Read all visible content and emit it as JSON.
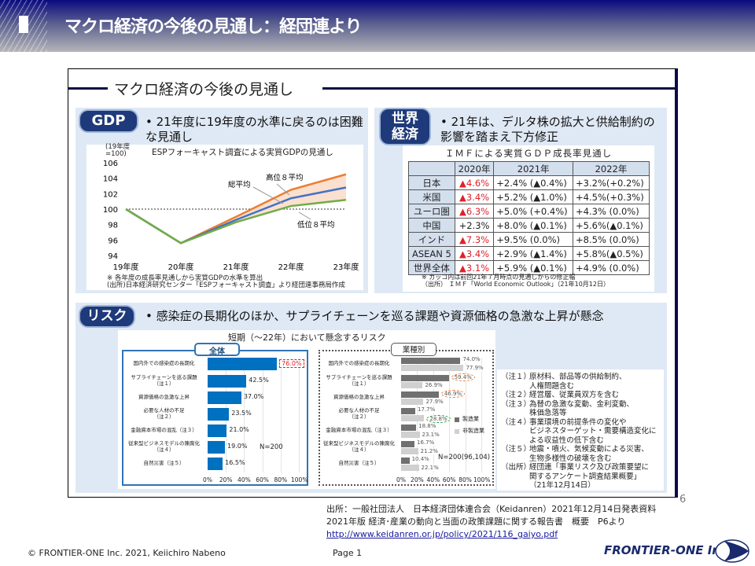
{
  "header": {
    "title": "マクロ経済の今後の見通し：経団連より"
  },
  "slide": {
    "section_title": "マクロ経済の今後の見通し",
    "page_number": "6"
  },
  "gdp": {
    "badge": "GDP",
    "bullet": "21年度に19年度の水準に戻るのは困難な見通し",
    "chart_data": {
      "type": "line",
      "title": "ESPフォーキャスト調査による実質GDPの見通し",
      "ylabel": "(19年度=100)",
      "categories": [
        "19年度",
        "20年度",
        "21年度",
        "22年度",
        "23年度"
      ],
      "ylim": [
        94,
        106
      ],
      "yticks": [
        94,
        96,
        98,
        100,
        102,
        104,
        106
      ],
      "series": [
        {
          "name": "高位８平均",
          "color": "#ed7d31",
          "values": [
            100,
            95.6,
            99.0,
            102.5,
            104.5
          ]
        },
        {
          "name": "総平均",
          "color": "#4472c4",
          "values": [
            100,
            95.6,
            98.6,
            101.4,
            102.8
          ]
        },
        {
          "name": "低位８平均",
          "color": "#70ad47",
          "values": [
            100,
            95.6,
            98.3,
            100.4,
            101.2
          ]
        }
      ],
      "reference_line": 100
    },
    "notes": [
      "※ 各年度の成長率見通しから実質GDPの水準を算出",
      "(出所)日本経済研究センター「ESPフォーキャスト調査」より経団連事務局作成"
    ]
  },
  "world": {
    "badge_line1": "世界",
    "badge_line2": "経済",
    "bullet": "21年は、デルタ株の拡大と供給制約の影響を踏まえ下方修正",
    "table": {
      "title": "ＩＭＦによる実質ＧＤＰ成長率見通し",
      "headers": [
        "",
        "2020年",
        "2021年",
        "2022年"
      ],
      "rows": [
        [
          "日本",
          "▲4.6%",
          "+2.4% (▲0.4%)",
          "+3.2%(+0.2%)"
        ],
        [
          "米国",
          "▲3.4%",
          "+5.2% (▲1.0%)",
          "+4.5%(+0.3%)"
        ],
        [
          "ユーロ圏",
          "▲6.3%",
          "+5.0% (+0.4%)",
          "+4.3% (0.0%)"
        ],
        [
          "中国",
          "+2.3%",
          "+8.0% (▲0.1%)",
          "+5.6%(▲0.1%)"
        ],
        [
          "インド",
          "▲7.3%",
          "+9.5% (0.0%)",
          "+8.5% (0.0%)"
        ],
        [
          "ASEAN 5",
          "▲3.4%",
          "+2.9% (▲1.4%)",
          "+5.8%(▲0.5%)"
        ],
        [
          "世界全体",
          "▲3.1%",
          "+5.9% (▲0.1%)",
          "+4.9% (0.0%)"
        ]
      ]
    },
    "notes": [
      "※ カッコ内は前回21年７月時点の見通しからの修正幅",
      "（出所） ＩＭＦ「World Economic Outlook」（21年10月12日）"
    ]
  },
  "risk": {
    "badge": "リスク",
    "bullet": "感染症の長期化のほか、サプライチェーンを巡る課題や資源価格の急激な上昇が懸念",
    "subtitle": "短期（～22年）において懸念するリスク",
    "categories": [
      "国内外での感染症の長期化",
      "サプライチェーンを巡る課題\n（注１）",
      "資源価格の急激な上昇",
      "必要な人材の不足\n（注２）",
      "金融資本市場の混乱（注３）",
      "従来型ビジネスモデルの陳腐化\n（注４）",
      "自然災害（注５）"
    ],
    "xticks": [
      "0%",
      "20%",
      "40%",
      "60%",
      "80%",
      "100%"
    ],
    "chart_data": [
      {
        "type": "bar",
        "title": "全体",
        "n_label": "N=200",
        "color": "#0070c0",
        "values": [
          76.0,
          42.5,
          37.0,
          23.5,
          21.0,
          19.0,
          16.5
        ],
        "highlight": [
          0
        ]
      },
      {
        "type": "bar",
        "title": "業種別",
        "n_label": "N=200(96,104)",
        "series": [
          {
            "name": "製造業",
            "color": "#707070",
            "values": [
              74.0,
              59.4,
              46.9,
              17.7,
              18.8,
              16.7,
              10.4
            ]
          },
          {
            "name": "非製造業",
            "color": "#d0d0d0",
            "values": [
              77.9,
              26.9,
              27.9,
              28.8,
              23.1,
              21.2,
              22.1
            ]
          }
        ]
      }
    ],
    "notes": [
      [
        "（注１）",
        "原材料、部品等の供給制約、\n人権問題含む"
      ],
      [
        "（注２）",
        "経営層、従業員双方を含む"
      ],
      [
        "（注３）",
        "為替の急激な変動、金利変動、\n株価急落等"
      ],
      [
        "（注４）",
        "事業環境の前提条件の変化や\nビジネスターゲット・需要構造変化に\nよる収益性の低下含む"
      ],
      [
        "（注５）",
        "地震・噴火、気候変動による災害、\n生物多様性の破壊を含む"
      ],
      [
        "（出所）",
        "経団連「事業リスク及び政策要望に\n関するアンケート調査結果概要」\n（21年12月14日）"
      ]
    ]
  },
  "footer": {
    "source_line1": "出所：一般社団法人　日本経済団体連合会（Keidanren）2021年12月14日発表資料",
    "source_line2": "2021年版 経済･産業の動向と当面の政策課題に関する報告書　概要　P6より",
    "link": "http://www.keidanren.or.jp/policy/2021/116_gaiyo.pdf",
    "copyright": "© FRONTIER-ONE Inc. 2021,  Keiichiro  Nabeno",
    "page": "Page 1",
    "logo_text": "FRONTIER-ONE Inc."
  }
}
